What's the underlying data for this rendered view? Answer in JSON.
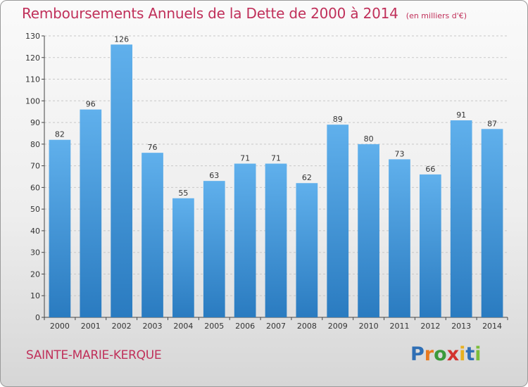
{
  "title": "Remboursements Annuels de la Dette de 2000 à 2014",
  "subtitle": "(en milliers d'€)",
  "commune": "SAINTE-MARIE-KERQUE",
  "logo": {
    "letters": [
      "P",
      "r",
      "o",
      "x",
      "i",
      "t",
      "i"
    ],
    "colors": [
      "#2f6fb5",
      "#e8791f",
      "#3b9a3b",
      "#d3322f",
      "#e8b01f",
      "#2f6fb5",
      "#7bbd3a"
    ]
  },
  "colors": {
    "bar_top": "#60b0ec",
    "bar_bottom": "#2a7bc0",
    "text": "#c0305a"
  },
  "chart_data": {
    "type": "bar",
    "categories": [
      "2000",
      "2001",
      "2002",
      "2003",
      "2004",
      "2005",
      "2006",
      "2007",
      "2008",
      "2009",
      "2010",
      "2011",
      "2012",
      "2013",
      "2014"
    ],
    "values": [
      82,
      96,
      126,
      76,
      55,
      63,
      71,
      71,
      62,
      89,
      80,
      73,
      66,
      91,
      87
    ],
    "ylim": [
      0,
      130
    ],
    "yticks": [
      0,
      10,
      20,
      30,
      40,
      50,
      60,
      70,
      80,
      90,
      100,
      110,
      120,
      130
    ],
    "grid": true,
    "xlabel": "",
    "ylabel": ""
  }
}
